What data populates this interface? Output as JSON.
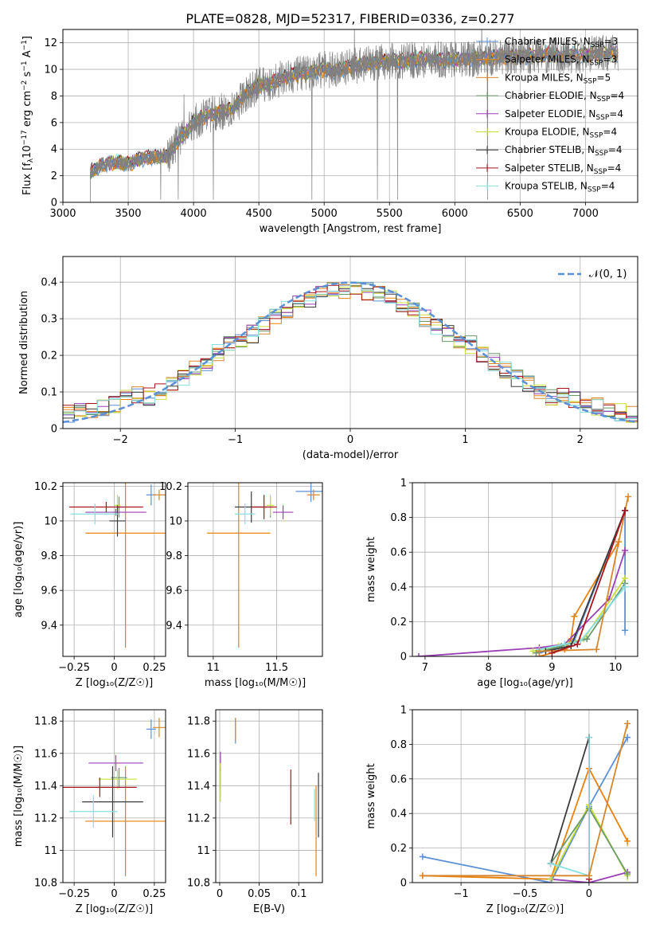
{
  "figure": {
    "title": "PLATE=0828, MJD=52317, FIBERID=0336, z=0.277"
  },
  "series_names": [
    "Chabrier MILES, N$_{SSP}$=3",
    "Salpeter MILES, N$_{SSP}$=3",
    "Kroupa MILES, N$_{SSP}$=5",
    "Chabrier ELODIE, N$_{SSP}$=4",
    "Salpeter ELODIE, N$_{SSP}$=4",
    "Kroupa ELODIE, N$_{SSP}$=4",
    "Chabrier STELIB, N$_{SSP}$=4",
    "Salpeter STELIB, N$_{SSP}$=4",
    "Kroupa STELIB, N$_{SSP}$=4"
  ],
  "series_colors": [
    "#5b8fd6",
    "#e8820c",
    "#d8862b",
    "#6a9a6a",
    "#9a3fb5",
    "#c9de3a",
    "#3b3b3b",
    "#a8141c",
    "#86dfe0"
  ],
  "legend_entries": [
    {
      "base": "Chabrier MILES, N",
      "sub": "SSP",
      "tail": "=3",
      "color": "#5b8fd6"
    },
    {
      "base": "Salpeter MILES, N",
      "sub": "SSP",
      "tail": "=3",
      "color": "#e8820c"
    },
    {
      "base": "Kroupa MILES, N",
      "sub": "SSP",
      "tail": "=5",
      "color": "#d8862b"
    },
    {
      "base": "Chabrier ELODIE, N",
      "sub": "SSP",
      "tail": "=4",
      "color": "#6a9a6a"
    },
    {
      "base": "Salpeter ELODIE, N",
      "sub": "SSP",
      "tail": "=4",
      "color": "#9a3fb5"
    },
    {
      "base": "Kroupa ELODIE, N",
      "sub": "SSP",
      "tail": "=4",
      "color": "#c9de3a"
    },
    {
      "base": "Chabrier STELIB, N",
      "sub": "SSP",
      "tail": "=4",
      "color": "#3b3b3b"
    },
    {
      "base": "Salpeter STELIB, N",
      "sub": "SSP",
      "tail": "=4",
      "color": "#a8141c"
    },
    {
      "base": "Kroupa STELIB, N",
      "sub": "SSP",
      "tail": "=4",
      "color": "#86dfe0"
    }
  ],
  "chart_data": [
    {
      "id": "spectrum",
      "type": "line",
      "xlabel": "wavelength [Angstrom, rest frame]",
      "ylabel_parts": [
        "Flux [f",
        "λ",
        "10",
        "−17",
        " erg cm",
        "−2",
        " s",
        "−1",
        " A",
        "−1",
        "]"
      ],
      "xlim": [
        3000,
        7400
      ],
      "ylim": [
        0,
        13
      ],
      "xticks": [
        3000,
        3500,
        4000,
        4500,
        5000,
        5500,
        6000,
        6500,
        7000
      ],
      "yticks": [
        0,
        2,
        4,
        6,
        8,
        10,
        12
      ],
      "data_start": 3210,
      "data_end": 7250,
      "observed_envelope": {
        "x": [
          3210,
          3300,
          3400,
          3500,
          3600,
          3700,
          3800,
          3900,
          4000,
          4100,
          4200,
          4300,
          4400,
          4500,
          4600,
          4700,
          4800,
          4900,
          5000,
          5100,
          5200,
          5300,
          5400,
          5500,
          5600,
          5700,
          5800,
          5900,
          6000,
          6100,
          6200,
          6300,
          6400,
          6500,
          6600,
          6700,
          6800,
          6900,
          7000,
          7100,
          7200,
          7250
        ],
        "y": [
          2.3,
          2.8,
          3.0,
          2.9,
          3.3,
          3.4,
          3.5,
          4.8,
          6.0,
          6.5,
          6.8,
          7.0,
          8.2,
          8.8,
          9.0,
          9.4,
          9.6,
          9.8,
          10.0,
          9.9,
          10.2,
          10.4,
          10.5,
          10.6,
          10.6,
          10.7,
          10.8,
          10.7,
          10.7,
          10.8,
          10.8,
          10.9,
          10.9,
          11.0,
          11.0,
          11.1,
          11.0,
          11.1,
          11.1,
          11.2,
          11.2,
          11.2
        ]
      }
    },
    {
      "id": "residual_hist",
      "type": "bar",
      "xlabel": "(data-model)/error",
      "ylabel": "Normed distribution",
      "xlim": [
        -2.5,
        2.5
      ],
      "ylim": [
        0,
        0.47
      ],
      "xticks": [
        -2,
        -1,
        0,
        1,
        2
      ],
      "yticks": [
        0.0,
        0.1,
        0.2,
        0.3,
        0.4
      ],
      "legend": "𝒩(0, 1)",
      "bin_width": 0.1
    },
    {
      "id": "age_vs_Z",
      "type": "scatter",
      "xlabel": "Z [log₁₀(Z/Z☉)]",
      "ylabel": "age  [log₁₀(age/yr)]",
      "xlim": [
        -0.32,
        0.32
      ],
      "ylim": [
        9.22,
        10.22
      ],
      "xticks": [
        -0.25,
        0.0,
        0.25
      ],
      "yticks": [
        9.4,
        9.6,
        9.8,
        10.0,
        10.2
      ],
      "points": [
        {
          "x": 0.23,
          "y": 10.15,
          "xerr": 0.03,
          "yerr": 0.06,
          "c": 0
        },
        {
          "x": 0.07,
          "y": 9.93,
          "xerr": 0.25,
          "yerr": 0.66,
          "c": 1
        },
        {
          "x": 0.28,
          "y": 10.15,
          "xerr": 0.04,
          "yerr": 0.03,
          "c": 2
        },
        {
          "x": 0.03,
          "y": 10.08,
          "xerr": 0.02,
          "yerr": 0.06,
          "c": 3
        },
        {
          "x": 0.01,
          "y": 10.05,
          "xerr": 0.19,
          "yerr": 0.02,
          "c": 4
        },
        {
          "x": 0.02,
          "y": 10.09,
          "xerr": 0.02,
          "yerr": 0.06,
          "c": 5
        },
        {
          "x": 0.02,
          "y": 10.0,
          "xerr": 0.05,
          "yerr": 0.09,
          "c": 6
        },
        {
          "x": -0.05,
          "y": 10.08,
          "xerr": 0.23,
          "yerr": 0.03,
          "c": 7
        },
        {
          "x": -0.12,
          "y": 10.04,
          "xerr": 0.15,
          "yerr": 0.06,
          "c": 8
        }
      ]
    },
    {
      "id": "age_vs_mass",
      "type": "scatter",
      "xlabel": "mass [log₁₀(M/M☉)]",
      "ylabel": "",
      "xlim": [
        10.8,
        11.86
      ],
      "ylim": [
        9.22,
        10.22
      ],
      "xticks": [
        11.0,
        11.5
      ],
      "yticks": [
        9.4,
        9.6,
        9.8,
        10.0,
        10.2
      ],
      "points": [
        {
          "x": 11.77,
          "y": 10.17,
          "xerr": 0.12,
          "yerr": 0.06,
          "c": 0
        },
        {
          "x": 11.2,
          "y": 9.93,
          "xerr": 0.25,
          "yerr": 0.66,
          "c": 1
        },
        {
          "x": 11.79,
          "y": 10.15,
          "xerr": 0.05,
          "yerr": 0.03,
          "c": 2
        },
        {
          "x": 11.45,
          "y": 10.08,
          "xerr": 0.02,
          "yerr": 0.06,
          "c": 3
        },
        {
          "x": 11.55,
          "y": 10.05,
          "xerr": 0.08,
          "yerr": 0.04,
          "c": 4
        },
        {
          "x": 11.45,
          "y": 10.09,
          "xerr": 0.03,
          "yerr": 0.06,
          "c": 5
        },
        {
          "x": 11.3,
          "y": 10.08,
          "xerr": 0.13,
          "yerr": 0.09,
          "c": 6
        },
        {
          "x": 11.4,
          "y": 10.08,
          "xerr": 0.1,
          "yerr": 0.07,
          "c": 7
        },
        {
          "x": 11.25,
          "y": 10.04,
          "xerr": 0.08,
          "yerr": 0.06,
          "c": 8
        }
      ]
    },
    {
      "id": "mass_weight_vs_age",
      "type": "line",
      "xlabel": "age  [log₁₀(age/yr)]",
      "ylabel": "mass weight",
      "xlim": [
        6.8,
        10.35
      ],
      "ylim": [
        0,
        1
      ],
      "xticks": [
        7,
        8,
        9,
        10
      ],
      "yticks": [
        0.0,
        0.2,
        0.4,
        0.6,
        0.8,
        1.0
      ],
      "series": [
        {
          "c": 0,
          "x": [
            8.8,
            9.1,
            9.35,
            10.15,
            10.15
          ],
          "y": [
            0.02,
            0.05,
            0.09,
            0.84,
            0.15
          ]
        },
        {
          "c": 1,
          "x": [
            8.8,
            9.2,
            9.3,
            9.35,
            10.05
          ],
          "y": [
            0.0,
            0.04,
            0.1,
            0.23,
            0.66
          ]
        },
        {
          "c": 4,
          "x": [
            6.9,
            8.8,
            9.2,
            9.9,
            10.15
          ],
          "y": [
            0.0,
            0.05,
            0.07,
            0.33,
            0.61
          ]
        },
        {
          "c": 5,
          "x": [
            8.7,
            9.1,
            9.5,
            10.15
          ],
          "y": [
            0.03,
            0.06,
            0.1,
            0.45
          ]
        },
        {
          "c": 3,
          "x": [
            8.75,
            9.15,
            9.55,
            10.15
          ],
          "y": [
            0.02,
            0.06,
            0.1,
            0.42
          ]
        },
        {
          "c": 8,
          "x": [
            8.8,
            9.2,
            9.45,
            10.15
          ],
          "y": [
            0.04,
            0.07,
            0.09,
            0.4
          ]
        },
        {
          "c": 6,
          "x": [
            8.9,
            9.3,
            10.15
          ],
          "y": [
            0.03,
            0.06,
            0.84
          ]
        },
        {
          "c": 2,
          "x": [
            8.8,
            9.7,
            10.2
          ],
          "y": [
            0.03,
            0.04,
            0.92
          ]
        },
        {
          "c": 7,
          "x": [
            9.0,
            9.4,
            10.15
          ],
          "y": [
            0.02,
            0.07,
            0.84
          ]
        }
      ]
    },
    {
      "id": "mass_vs_Z",
      "type": "scatter",
      "xlabel": "Z [log₁₀(Z/Z☉)]",
      "ylabel": "mass [log₁₀(M/M☉)]",
      "xlim": [
        -0.32,
        0.32
      ],
      "ylim": [
        10.8,
        11.87
      ],
      "xticks": [
        -0.25,
        0.0,
        0.25
      ],
      "yticks": [
        10.8,
        11.0,
        11.2,
        11.4,
        11.6,
        11.8
      ],
      "points": [
        {
          "x": 0.23,
          "y": 11.75,
          "xerr": 0.03,
          "yerr": 0.06,
          "c": 0
        },
        {
          "x": 0.07,
          "y": 11.18,
          "xerr": 0.25,
          "yerr": 0.34,
          "c": 1
        },
        {
          "x": 0.28,
          "y": 11.76,
          "xerr": 0.04,
          "yerr": 0.06,
          "c": 2
        },
        {
          "x": 0.03,
          "y": 11.45,
          "xerr": 0.05,
          "yerr": 0.06,
          "c": 3
        },
        {
          "x": 0.01,
          "y": 11.54,
          "xerr": 0.17,
          "yerr": 0.05,
          "c": 4
        },
        {
          "x": 0.02,
          "y": 11.44,
          "xerr": 0.12,
          "yerr": 0.06,
          "c": 5
        },
        {
          "x": -0.01,
          "y": 11.3,
          "xerr": 0.19,
          "yerr": 0.22,
          "c": 6
        },
        {
          "x": -0.09,
          "y": 11.39,
          "xerr": 0.23,
          "yerr": 0.06,
          "c": 7
        },
        {
          "x": -0.13,
          "y": 11.24,
          "xerr": 0.15,
          "yerr": 0.1,
          "c": 8
        }
      ]
    },
    {
      "id": "mass_vs_ebv",
      "type": "scatter",
      "xlabel": "E(B-V)",
      "ylabel": "",
      "xlim": [
        -0.005,
        0.13
      ],
      "ylim": [
        10.8,
        11.87
      ],
      "xticks": [
        0.0,
        0.05,
        0.1
      ],
      "ytick_labels": [
        "10.8",
        "11.0",
        "11.2",
        "11.4",
        "11.6",
        "11.8"
      ],
      "yticks": [
        10.8,
        11.0,
        11.2,
        11.4,
        11.6,
        11.8
      ],
      "points": [
        {
          "x": 0.02,
          "y": 11.74,
          "yerr": 0.08,
          "c": 0
        },
        {
          "x": 0.122,
          "y": 11.12,
          "yerr": 0.28,
          "c": 1
        },
        {
          "x": 0.02,
          "y": 11.75,
          "yerr": 0.07,
          "c": 2
        },
        {
          "x": 0.001,
          "y": 11.45,
          "yerr": 0.06,
          "c": 3
        },
        {
          "x": 0.001,
          "y": 11.55,
          "yerr": 0.06,
          "c": 4
        },
        {
          "x": 0.001,
          "y": 11.42,
          "yerr": 0.12,
          "c": 5
        },
        {
          "x": 0.125,
          "y": 11.28,
          "yerr": 0.2,
          "c": 6
        },
        {
          "x": 0.09,
          "y": 11.33,
          "yerr": 0.17,
          "c": 7
        },
        {
          "x": 0.12,
          "y": 11.28,
          "yerr": 0.1,
          "c": 8
        }
      ]
    },
    {
      "id": "mass_weight_vs_Z",
      "type": "line",
      "xlabel": "Z [log₁₀(Z/Z☉)]",
      "ylabel": "mass weight",
      "xlim": [
        -1.38,
        0.38
      ],
      "ylim": [
        0,
        1
      ],
      "xticks": [
        -1.0,
        -0.5,
        0.0
      ],
      "yticks": [
        0.0,
        0.2,
        0.4,
        0.6,
        0.8,
        1.0
      ],
      "series": [
        {
          "c": 0,
          "x": [
            -1.3,
            -0.3,
            0.0,
            0.3
          ],
          "y": [
            0.15,
            0.0,
            0.44,
            0.84
          ]
        },
        {
          "c": 1,
          "x": [
            -1.3,
            -0.3,
            0.0,
            0.3
          ],
          "y": [
            0.04,
            0.02,
            0.66,
            0.24
          ]
        },
        {
          "c": 4,
          "x": [
            -0.3,
            0.0,
            0.3
          ],
          "y": [
            0.02,
            0.0,
            0.06
          ]
        },
        {
          "c": 5,
          "x": [
            -0.3,
            0.0,
            0.3
          ],
          "y": [
            0.02,
            0.45,
            0.04
          ]
        },
        {
          "c": 3,
          "x": [
            -0.3,
            0.0,
            0.3
          ],
          "y": [
            0.11,
            0.43,
            0.05
          ]
        },
        {
          "c": 6,
          "x": [
            -0.3,
            0.0
          ],
          "y": [
            0.11,
            0.84
          ]
        },
        {
          "c": 7,
          "x": [
            0.0,
            0.0
          ],
          "y": [
            0.02,
            0.84
          ]
        },
        {
          "c": 8,
          "x": [
            -0.3,
            0.0,
            0.0
          ],
          "y": [
            0.11,
            0.04,
            0.84
          ]
        },
        {
          "c": 2,
          "x": [
            -1.3,
            0.0,
            0.3
          ],
          "y": [
            0.04,
            0.04,
            0.92
          ]
        }
      ]
    }
  ]
}
